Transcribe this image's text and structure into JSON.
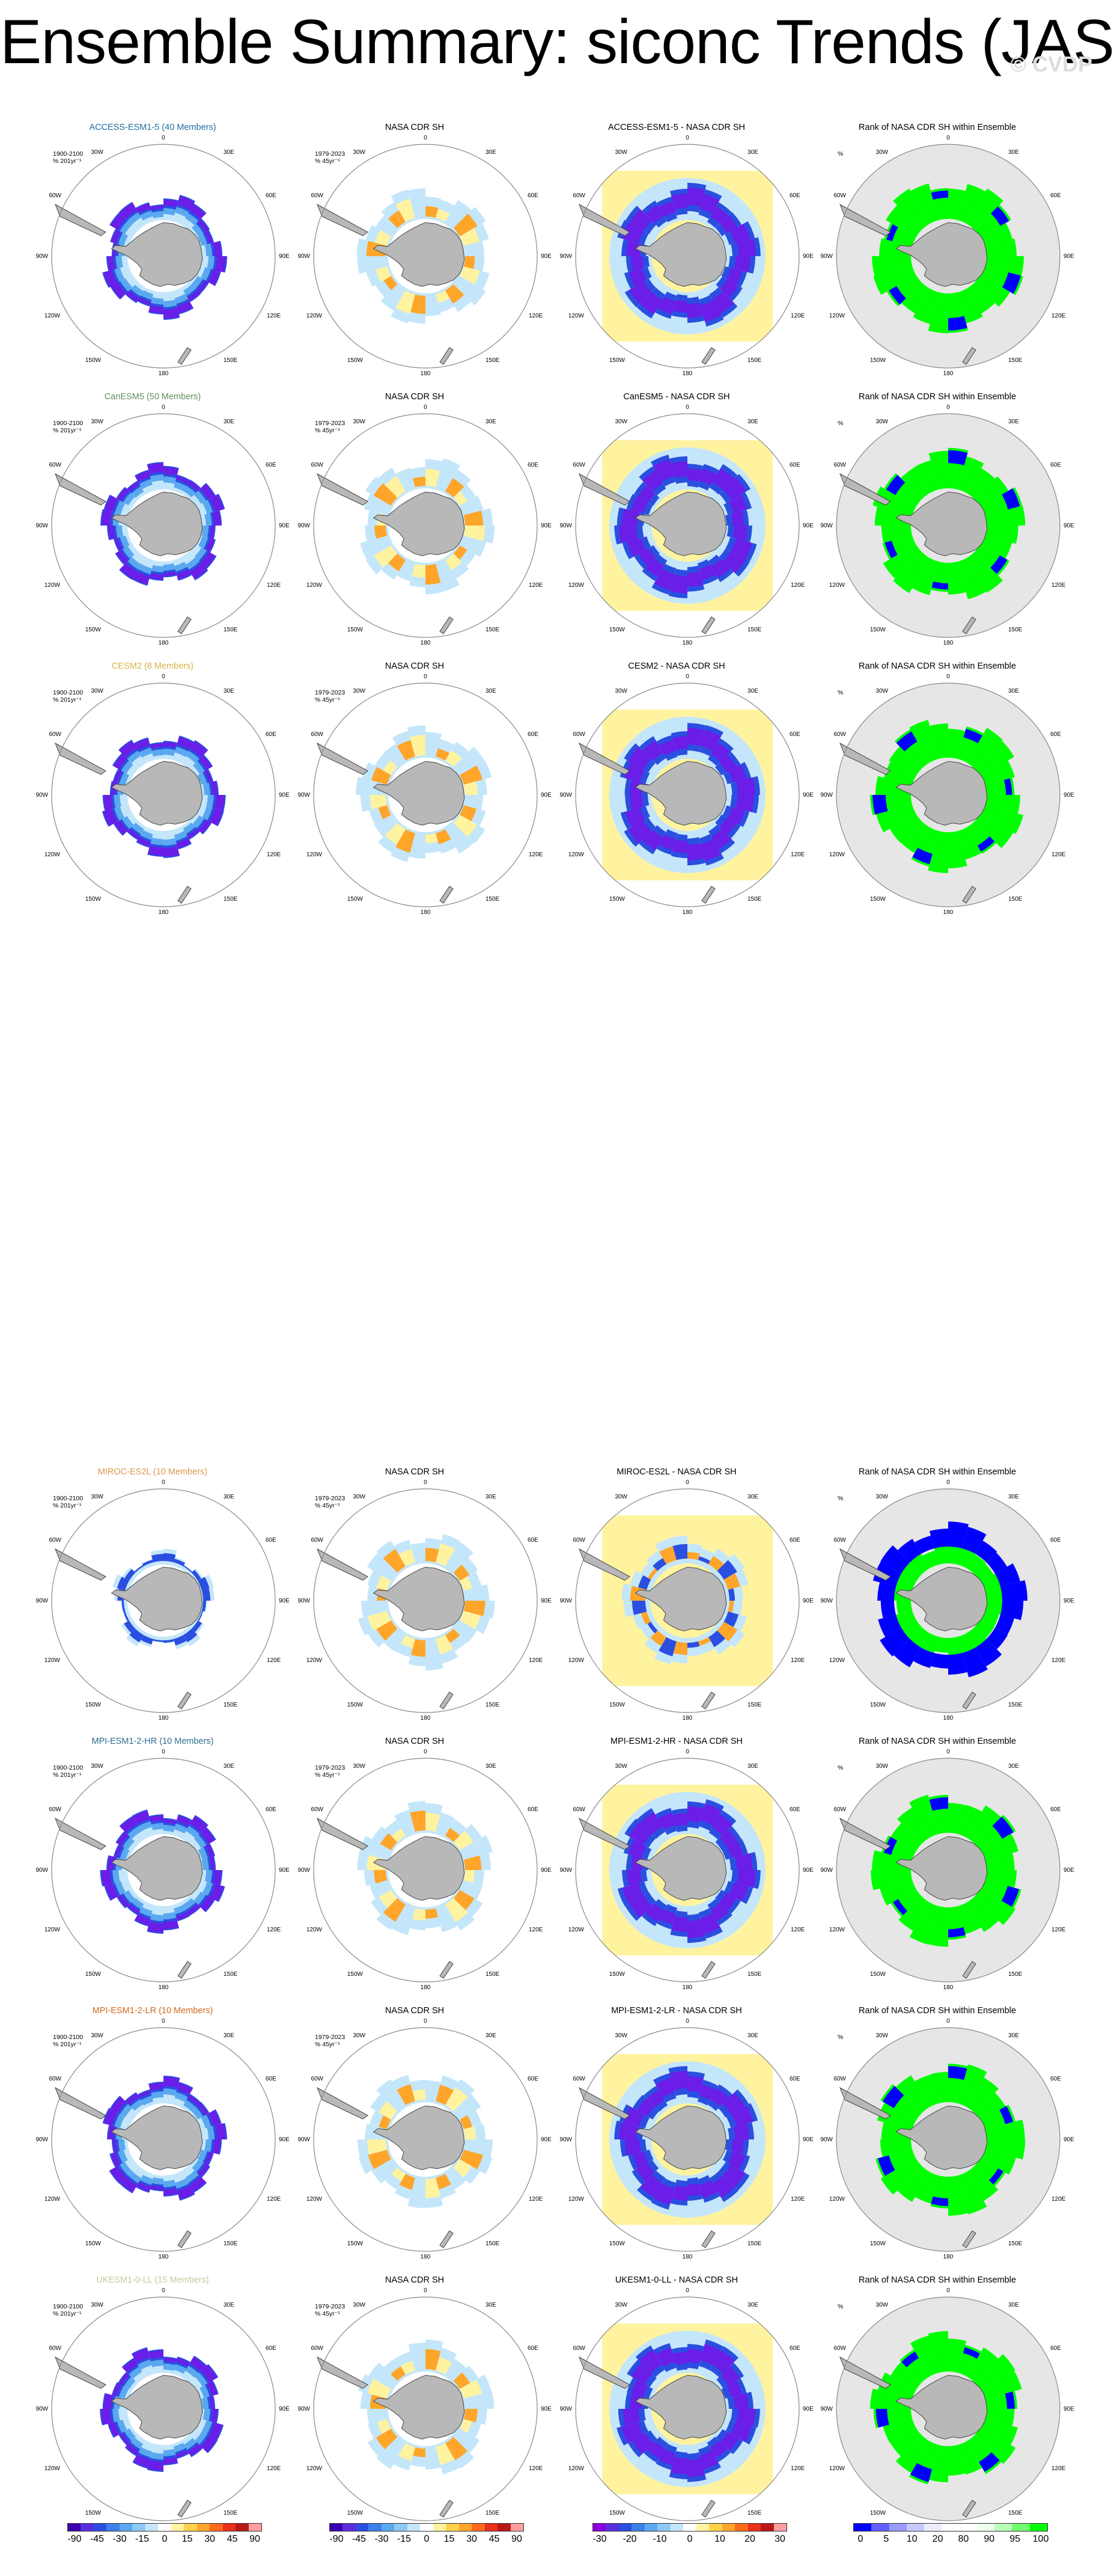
{
  "title": "Ensemble Summary: siconc Trends (JAS)",
  "watermark": "© CVDP",
  "longitude_labels": {
    "0": "0",
    "30E": "30E",
    "60E": "60E",
    "90E": "90E",
    "120E": "120E",
    "150E": "150E",
    "180": "180",
    "150W": "150W",
    "120W": "120W",
    "90W": "90W",
    "60W": "60W",
    "30W": "30W"
  },
  "rows": [
    {
      "model_title": "ACCESS-ESM1-5 (40 Members)",
      "model_color": "#1f6fa0",
      "model_info": [
        "1900-2100",
        "% 201yr⁻¹"
      ],
      "obs_title": "NASA CDR SH",
      "obs_info": [
        "1979-2023",
        "% 45yr⁻¹"
      ],
      "diff_title": "ACCESS-ESM1-5 - NASA CDR SH",
      "rank_title": "Rank of NASA CDR SH within Ensemble",
      "rank_info": "%"
    },
    {
      "model_title": "CanESM5 (50 Members)",
      "model_color": "#5f8f5f",
      "model_info": [
        "1900-2100",
        "% 201yr⁻¹"
      ],
      "obs_title": "NASA CDR SH",
      "obs_info": [
        "1979-2023",
        "% 45yr⁻¹"
      ],
      "diff_title": "CanESM5 - NASA CDR SH",
      "rank_title": "Rank of NASA CDR SH within Ensemble",
      "rank_info": "%"
    },
    {
      "model_title": "CESM2 (8 Members)",
      "model_color": "#d9b24a",
      "model_info": [
        "1900-2100",
        "% 201yr⁻¹"
      ],
      "obs_title": "NASA CDR SH",
      "obs_info": [
        "1979-2023",
        "% 45yr⁻¹"
      ],
      "diff_title": "CESM2 - NASA CDR SH",
      "rank_title": "Rank of NASA CDR SH within Ensemble",
      "rank_info": "%"
    },
    {
      "model_title": "MIROC-ES2L (10 Members)",
      "model_color": "#d99a4a",
      "model_info": [
        "1900-2100",
        "% 201yr⁻¹"
      ],
      "obs_title": "NASA CDR SH",
      "obs_info": [
        "1979-2023",
        "% 45yr⁻¹"
      ],
      "diff_title": "MIROC-ES2L - NASA CDR SH",
      "rank_title": "Rank of NASA CDR SH within Ensemble",
      "rank_info": "%"
    },
    {
      "model_title": "MPI-ESM1-2-HR (10 Members)",
      "model_color": "#2f6f8f",
      "model_info": [
        "1900-2100",
        "% 201yr⁻¹"
      ],
      "obs_title": "NASA CDR SH",
      "obs_info": [
        "1979-2023",
        "% 45yr⁻¹"
      ],
      "diff_title": "MPI-ESM1-2-HR - NASA CDR SH",
      "rank_title": "Rank of NASA CDR SH within Ensemble",
      "rank_info": "%"
    },
    {
      "model_title": "MPI-ESM1-2-LR (10 Members)",
      "model_color": "#d2691e",
      "model_info": [
        "1900-2100",
        "% 201yr⁻¹"
      ],
      "obs_title": "NASA CDR SH",
      "obs_info": [
        "1979-2023",
        "% 45yr⁻¹"
      ],
      "diff_title": "MPI-ESM1-2-LR - NASA CDR SH",
      "rank_title": "Rank of NASA CDR SH within Ensemble",
      "rank_info": "%"
    },
    {
      "model_title": "UKESM1-0-LL (15 Members)",
      "model_color": "#c8c89a",
      "model_info": [
        "1900-2100",
        "% 201yr⁻¹"
      ],
      "obs_title": "NASA CDR SH",
      "obs_info": [
        "1979-2023",
        "% 45yr⁻¹"
      ],
      "diff_title": "UKESM1-0-LL - NASA CDR SH",
      "rank_title": "Rank of NASA CDR SH within Ensemble",
      "rank_info": "%"
    }
  ],
  "colorbars": [
    {
      "name": "model-trend-colorbar",
      "colors": [
        "#3a00b0",
        "#5a2de0",
        "#2a4fe0",
        "#3f7fe8",
        "#5aa8f0",
        "#8ccaf5",
        "#c4e6fa",
        "#ffffff",
        "#fff3a0",
        "#ffd24a",
        "#ffa52a",
        "#ff6a1a",
        "#e8301a",
        "#b81818",
        "#ff9fa0"
      ],
      "ticks": [
        "-90",
        "-45",
        "-30",
        "-15",
        "0",
        "15",
        "30",
        "45",
        "90"
      ]
    },
    {
      "name": "obs-trend-colorbar",
      "colors": [
        "#3a00b0",
        "#5a2de0",
        "#2a4fe0",
        "#3f7fe8",
        "#5aa8f0",
        "#8ccaf5",
        "#c4e6fa",
        "#ffffff",
        "#fff3a0",
        "#ffd24a",
        "#ffa52a",
        "#ff6a1a",
        "#e8301a",
        "#b81818",
        "#ff9fa0"
      ],
      "ticks": [
        "-90",
        "-45",
        "-30",
        "-15",
        "0",
        "15",
        "30",
        "45",
        "90"
      ]
    },
    {
      "name": "difference-colorbar",
      "colors": [
        "#8a00e0",
        "#5a2de0",
        "#2a4fe0",
        "#3f7fe8",
        "#5aa8f0",
        "#8ccaf5",
        "#c4e6fa",
        "#ffffff",
        "#fff3a0",
        "#ffd24a",
        "#ffa52a",
        "#ff6a1a",
        "#e8301a",
        "#b81818",
        "#ff9fa0"
      ],
      "ticks": [
        "-30",
        "-20",
        "-10",
        "0",
        "10",
        "20",
        "30"
      ]
    },
    {
      "name": "rank-colorbar",
      "colors": [
        "#0000ff",
        "#6060ff",
        "#9a9aff",
        "#c8c8ff",
        "#ececff",
        "#ffffff",
        "#ffffff",
        "#ecffec",
        "#b8ffb8",
        "#70ff70",
        "#00ff00"
      ],
      "ticks": [
        "0",
        "5",
        "10",
        "20",
        "80",
        "90",
        "95",
        "100"
      ]
    }
  ],
  "field_colors": {
    "dark_purple": "#6a1ee8",
    "blue": "#2a4fe0",
    "mid_blue": "#5aa8f0",
    "light_blue": "#c4e6fa",
    "yellow": "#fff3a0",
    "orange": "#ffa52a",
    "green": "#00ff00",
    "land": "#b8b8b8",
    "rank_bg": "#e6e6e6"
  }
}
